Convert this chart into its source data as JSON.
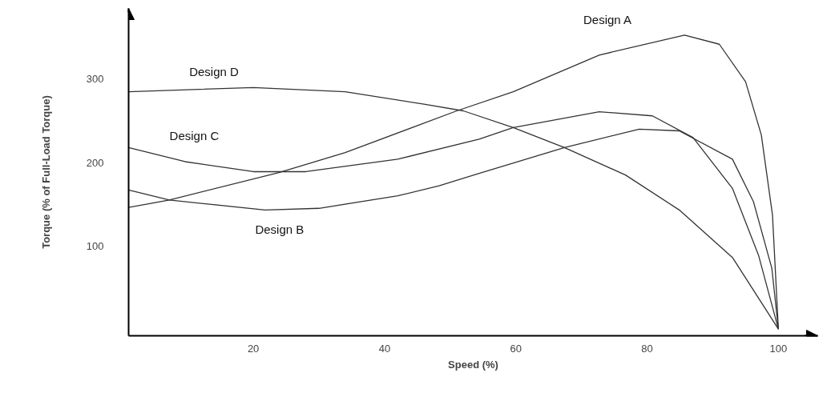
{
  "chart_data": {
    "type": "line",
    "xlabel": "Speed (%)",
    "ylabel": "Torque (% of Full-Load Torque)",
    "xlim": [
      1,
      106
    ],
    "ylim": [
      -8,
      385
    ],
    "xticks": [
      20,
      40,
      60,
      80,
      100
    ],
    "yticks": [
      100,
      200,
      300
    ],
    "grid": false,
    "legend": false,
    "line_style": "solid",
    "series": [
      {
        "name": "Design A",
        "color": "#333333",
        "x": [
          1,
          7.2,
          23.9,
          34,
          51,
          59.6,
          72.7,
          85.7,
          91,
          95,
          97.4,
          99.1,
          100
        ],
        "values": [
          146,
          155,
          188,
          212,
          262,
          285,
          329,
          353,
          342,
          297,
          233,
          137,
          0
        ]
      },
      {
        "name": "Design B",
        "color": "#333333",
        "x": [
          1,
          7.2,
          21.8,
          30,
          42,
          48.3,
          54.4,
          67.4,
          78.8,
          84.9,
          93,
          96.2,
          99,
          100
        ],
        "values": [
          167,
          155,
          143,
          145,
          160,
          172,
          187,
          218,
          240,
          238,
          204,
          153,
          73,
          0
        ]
      },
      {
        "name": "Design C",
        "color": "#333333",
        "x": [
          1,
          9.6,
          20,
          28,
          42,
          54.4,
          59.6,
          72.7,
          80.8,
          87,
          93,
          97,
          100
        ],
        "values": [
          218,
          201,
          189,
          189,
          204,
          228,
          242,
          261,
          256,
          230,
          169,
          88,
          0
        ]
      },
      {
        "name": "Design D",
        "color": "#333333",
        "x": [
          1,
          20,
          34,
          46,
          52,
          59.6,
          67.4,
          76.7,
          84.9,
          93,
          100
        ],
        "values": [
          285,
          290,
          285,
          270,
          262,
          242,
          218,
          185,
          143,
          86,
          0
        ]
      }
    ]
  }
}
